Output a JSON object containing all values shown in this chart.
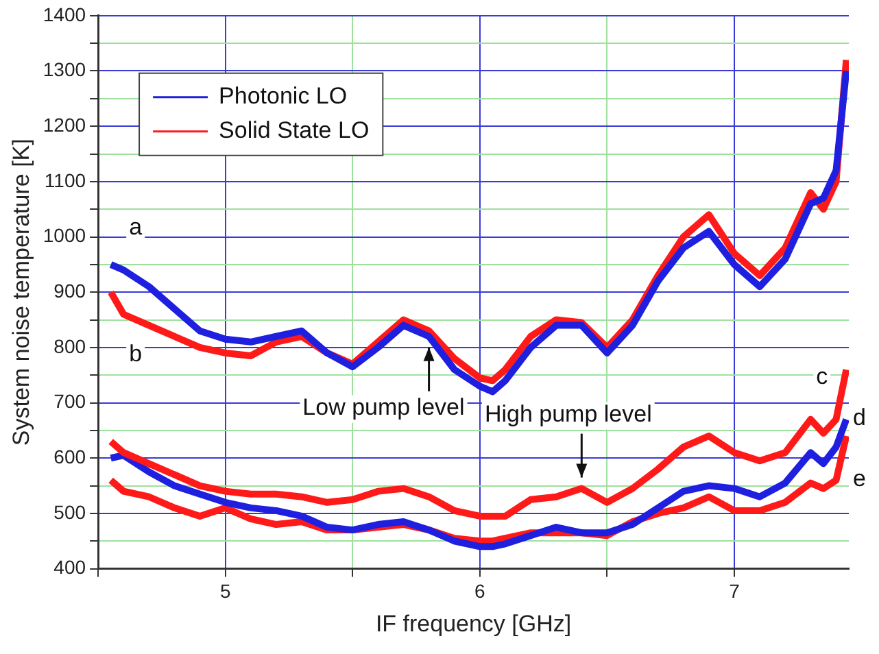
{
  "chart_data": {
    "type": "line",
    "xlabel": "IF frequency [GHz]",
    "ylabel": "System noise temperature [K]",
    "x": [
      4.55,
      4.6,
      4.7,
      4.8,
      4.9,
      5.0,
      5.1,
      5.2,
      5.3,
      5.4,
      5.5,
      5.6,
      5.7,
      5.8,
      5.9,
      6.0,
      6.05,
      6.1,
      6.2,
      6.3,
      6.4,
      6.5,
      6.6,
      6.7,
      6.8,
      6.9,
      7.0,
      7.1,
      7.2,
      7.3,
      7.35,
      7.4,
      7.44
    ],
    "series": [
      {
        "name": "Photonic LO",
        "color": "#1f1fe0",
        "values": [
          950,
          940,
          910,
          870,
          830,
          815,
          810,
          820,
          830,
          790,
          765,
          800,
          840,
          820,
          760,
          730,
          720,
          740,
          800,
          840,
          840,
          790,
          840,
          920,
          980,
          1010,
          950,
          910,
          960,
          1060,
          1070,
          1120,
          1300
        ]
      },
      {
        "name": "Solid State LO",
        "color": "#ff1a1a",
        "values": [
          900,
          860,
          840,
          820,
          800,
          790,
          785,
          810,
          820,
          790,
          770,
          810,
          850,
          830,
          780,
          745,
          740,
          760,
          820,
          850,
          845,
          800,
          850,
          930,
          1000,
          1040,
          970,
          930,
          980,
          1080,
          1050,
          1100,
          1320
        ]
      },
      {
        "color": "#ff1a1a",
        "values": [
          630,
          610,
          590,
          570,
          550,
          540,
          535,
          535,
          530,
          520,
          525,
          540,
          545,
          530,
          505,
          495,
          495,
          495,
          525,
          530,
          545,
          520,
          545,
          580,
          620,
          640,
          610,
          595,
          610,
          670,
          645,
          670,
          760
        ]
      },
      {
        "color": "#1f1fe0",
        "values": [
          600,
          605,
          575,
          550,
          535,
          520,
          510,
          505,
          495,
          475,
          470,
          480,
          485,
          470,
          450,
          440,
          440,
          445,
          460,
          475,
          465,
          465,
          480,
          510,
          540,
          550,
          545,
          530,
          555,
          610,
          590,
          620,
          670
        ]
      },
      {
        "color": "#ff1a1a",
        "values": [
          560,
          540,
          530,
          510,
          495,
          510,
          490,
          480,
          485,
          470,
          470,
          475,
          480,
          470,
          455,
          450,
          450,
          455,
          465,
          465,
          465,
          460,
          485,
          500,
          510,
          530,
          505,
          505,
          520,
          555,
          545,
          560,
          640
        ]
      }
    ],
    "xlim": [
      4.5,
      7.45
    ],
    "xticks": [
      {
        "value": 4.5,
        "label": null
      },
      5,
      {
        "value": 5.5,
        "label": null
      },
      6,
      {
        "value": 6.5,
        "label": null
      },
      7
    ],
    "ylim": [
      400,
      1400
    ],
    "yticks": [
      400,
      {
        "value": 450,
        "label": null
      },
      500,
      {
        "value": 550,
        "label": null
      },
      600,
      {
        "value": 650,
        "label": null
      },
      700,
      {
        "value": 750,
        "label": null
      },
      800,
      {
        "value": 850,
        "label": null
      },
      900,
      {
        "value": 950,
        "label": null
      },
      1000,
      {
        "value": 1050,
        "label": null
      },
      1100,
      {
        "value": 1150,
        "label": null
      },
      1200,
      {
        "value": 1250,
        "label": null
      },
      1300,
      {
        "value": 1350,
        "label": null
      },
      1400
    ],
    "grid": true,
    "legend": "top left",
    "marker": "none",
    "line_style": "solid",
    "annotations": [
      {
        "text": "a",
        "x": 4.6,
        "y": 940
      },
      {
        "text": "b",
        "x": 4.6,
        "y": 860
      },
      {
        "text": "c",
        "x": 7.3,
        "y": 670
      },
      {
        "text": "d",
        "x": 7.44,
        "y": 670
      },
      {
        "text": "e",
        "x": 7.4,
        "y": 560
      },
      {
        "text": "Low pump level",
        "x": 5.8,
        "y": 820
      },
      {
        "text": "High pump level",
        "x": 6.4,
        "y": 545
      }
    ]
  }
}
